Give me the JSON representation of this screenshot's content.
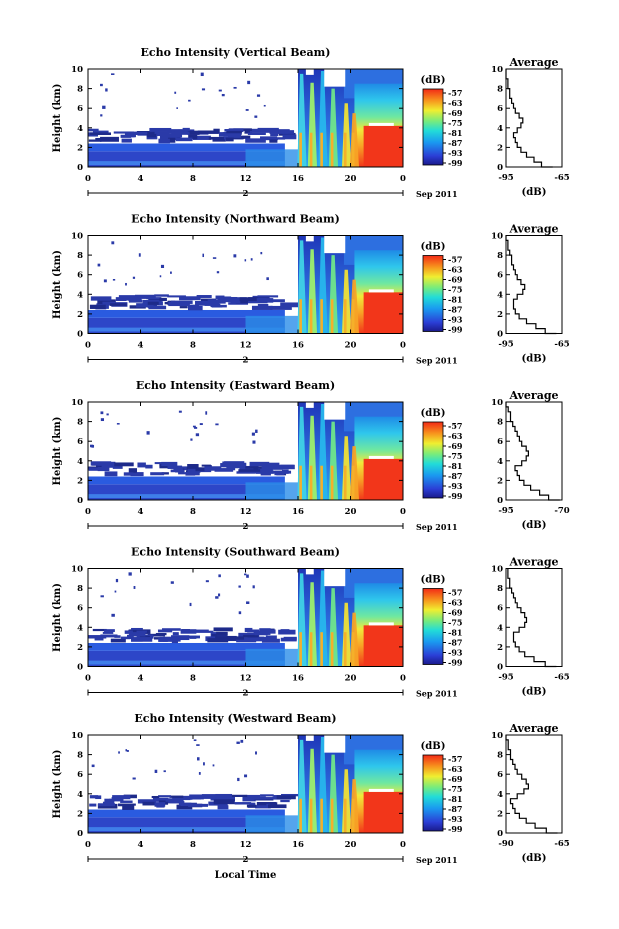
{
  "chart_data": [
    {
      "type": "heatmap",
      "title": "Echo Intensity (Vertical Beam)",
      "ylabel": "Height (km)",
      "xlim": [
        0,
        24
      ],
      "ylim": [
        0,
        10
      ],
      "x_ticks": [
        "0",
        "4",
        "8",
        "12",
        "16",
        "20",
        "0"
      ],
      "y_ticks": [
        "0",
        "2",
        "4",
        "6",
        "8",
        "10"
      ],
      "date_marker": "2",
      "date_suffix": "Sep 2011",
      "colorbar": {
        "label": "(dB)",
        "ticks": [
          "-57",
          "-63",
          "-69",
          "-75",
          "-81",
          "-87",
          "-93",
          "-99"
        ]
      },
      "profile": {
        "title": "Average",
        "xlabel": "(dB)",
        "xlim": [
          -95,
          -65
        ],
        "x_ticks": [
          "-95",
          "-65"
        ],
        "y_ticks": [
          "0",
          "2",
          "4",
          "6",
          "8",
          "10"
        ],
        "points": [
          [
            -70,
            0
          ],
          [
            -76,
            0.5
          ],
          [
            -80,
            1
          ],
          [
            -84,
            1.5
          ],
          [
            -87,
            2
          ],
          [
            -89,
            2.5
          ],
          [
            -90,
            3
          ],
          [
            -91,
            3.5
          ],
          [
            -89,
            4
          ],
          [
            -87,
            4.5
          ],
          [
            -86,
            5
          ],
          [
            -88,
            5.5
          ],
          [
            -90,
            6
          ],
          [
            -91,
            6.5
          ],
          [
            -92,
            7
          ],
          [
            -93,
            7.5
          ],
          [
            -93,
            8
          ],
          [
            -94,
            8.5
          ],
          [
            -94,
            9
          ],
          [
            -95,
            9.5
          ],
          [
            -95,
            10
          ]
        ]
      }
    },
    {
      "type": "heatmap",
      "title": "Echo Intensity (Northward Beam)",
      "ylabel": "Height (km)",
      "xlim": [
        0,
        24
      ],
      "ylim": [
        0,
        10
      ],
      "x_ticks": [
        "0",
        "4",
        "8",
        "12",
        "16",
        "20",
        "0"
      ],
      "y_ticks": [
        "0",
        "2",
        "4",
        "6",
        "8",
        "10"
      ],
      "date_marker": "2",
      "date_suffix": "Sep 2011",
      "colorbar": {
        "label": "(dB)",
        "ticks": [
          "-57",
          "-63",
          "-69",
          "-75",
          "-81",
          "-87",
          "-93",
          "-99"
        ]
      },
      "profile": {
        "title": "Average",
        "xlabel": "(dB)",
        "xlim": [
          -95,
          -65
        ],
        "x_ticks": [
          "-95",
          "-65"
        ],
        "y_ticks": [
          "0",
          "2",
          "4",
          "6",
          "8",
          "10"
        ],
        "points": [
          [
            -68,
            0
          ],
          [
            -74,
            0.5
          ],
          [
            -79,
            1
          ],
          [
            -84,
            1.5
          ],
          [
            -88,
            2
          ],
          [
            -90,
            2.5
          ],
          [
            -91,
            3
          ],
          [
            -91,
            3.5
          ],
          [
            -89,
            4
          ],
          [
            -86,
            4.5
          ],
          [
            -85,
            5
          ],
          [
            -87,
            5.5
          ],
          [
            -89,
            6
          ],
          [
            -90,
            6.5
          ],
          [
            -91,
            7
          ],
          [
            -92,
            7.5
          ],
          [
            -92,
            8
          ],
          [
            -93,
            8.5
          ],
          [
            -94,
            9
          ],
          [
            -94,
            9.5
          ],
          [
            -95,
            10
          ]
        ]
      }
    },
    {
      "type": "heatmap",
      "title": "Echo Intensity (Eastward Beam)",
      "ylabel": "Height (km)",
      "xlim": [
        0,
        24
      ],
      "ylim": [
        0,
        10
      ],
      "x_ticks": [
        "0",
        "4",
        "8",
        "12",
        "16",
        "20",
        "0"
      ],
      "y_ticks": [
        "0",
        "2",
        "4",
        "6",
        "8",
        "10"
      ],
      "date_marker": "2",
      "date_suffix": "Sep 2011",
      "colorbar": {
        "label": "(dB)",
        "ticks": [
          "-57",
          "-63",
          "-69",
          "-75",
          "-81",
          "-87",
          "-93",
          "-99"
        ]
      },
      "profile": {
        "title": "Average",
        "xlabel": "(dB)",
        "xlim": [
          -95,
          -70
        ],
        "x_ticks": [
          "-95",
          "-70"
        ],
        "y_ticks": [
          "0",
          "2",
          "4",
          "6",
          "8",
          "10"
        ],
        "points": [
          [
            -71,
            0
          ],
          [
            -76,
            0.5
          ],
          [
            -80,
            1
          ],
          [
            -84,
            1.5
          ],
          [
            -87,
            2
          ],
          [
            -89,
            2.5
          ],
          [
            -90,
            3
          ],
          [
            -91,
            3.5
          ],
          [
            -88,
            4
          ],
          [
            -86,
            4.5
          ],
          [
            -85,
            5
          ],
          [
            -86,
            5.5
          ],
          [
            -88,
            6
          ],
          [
            -89,
            6.5
          ],
          [
            -90,
            7
          ],
          [
            -91,
            7.5
          ],
          [
            -92,
            8
          ],
          [
            -93,
            8.5
          ],
          [
            -93,
            9
          ],
          [
            -94,
            9.5
          ],
          [
            -95,
            10
          ]
        ]
      }
    },
    {
      "type": "heatmap",
      "title": "Echo Intensity (Southward Beam)",
      "ylabel": "Height (km)",
      "xlim": [
        0,
        24
      ],
      "ylim": [
        0,
        10
      ],
      "x_ticks": [
        "0",
        "4",
        "8",
        "12",
        "16",
        "20",
        "0"
      ],
      "y_ticks": [
        "0",
        "2",
        "4",
        "6",
        "8",
        "10"
      ],
      "date_marker": "2",
      "date_suffix": "Sep 2011",
      "colorbar": {
        "label": "(dB)",
        "ticks": [
          "-57",
          "-63",
          "-69",
          "-75",
          "-81",
          "-87",
          "-93",
          "-99"
        ]
      },
      "profile": {
        "title": "Average",
        "xlabel": "(dB)",
        "xlim": [
          -95,
          -65
        ],
        "x_ticks": [
          "-95",
          "-65"
        ],
        "y_ticks": [
          "0",
          "2",
          "4",
          "6",
          "8",
          "10"
        ],
        "points": [
          [
            -68,
            0
          ],
          [
            -74,
            0.5
          ],
          [
            -80,
            1
          ],
          [
            -85,
            1.5
          ],
          [
            -88,
            2
          ],
          [
            -90,
            2.5
          ],
          [
            -91,
            3
          ],
          [
            -91,
            3.5
          ],
          [
            -88,
            4
          ],
          [
            -85,
            4.5
          ],
          [
            -84,
            5
          ],
          [
            -85,
            5.5
          ],
          [
            -87,
            6
          ],
          [
            -89,
            6.5
          ],
          [
            -90,
            7
          ],
          [
            -91,
            7.5
          ],
          [
            -92,
            8
          ],
          [
            -93,
            8.5
          ],
          [
            -93,
            9
          ],
          [
            -94,
            9.5
          ],
          [
            -94,
            10
          ]
        ]
      }
    },
    {
      "type": "heatmap",
      "title": "Echo Intensity (Westward Beam)",
      "ylabel": "Height (km)",
      "xlabel": "Local Time",
      "xlim": [
        0,
        24
      ],
      "ylim": [
        0,
        10
      ],
      "x_ticks": [
        "0",
        "4",
        "8",
        "12",
        "16",
        "20",
        "0"
      ],
      "y_ticks": [
        "0",
        "2",
        "4",
        "6",
        "8",
        "10"
      ],
      "date_marker": "2",
      "date_suffix": "Sep 2011",
      "colorbar": {
        "label": "(dB)",
        "ticks": [
          "-57",
          "-63",
          "-69",
          "-75",
          "-81",
          "-87",
          "-93",
          "-99"
        ]
      },
      "profile": {
        "title": "Average",
        "xlabel": "(dB)",
        "xlim": [
          -90,
          -65
        ],
        "x_ticks": [
          "-90",
          "-65"
        ],
        "y_ticks": [
          "0",
          "2",
          "4",
          "6",
          "8",
          "10"
        ],
        "points": [
          [
            -67,
            0
          ],
          [
            -72,
            0.5
          ],
          [
            -77,
            1
          ],
          [
            -81,
            1.5
          ],
          [
            -84,
            2
          ],
          [
            -86,
            2.5
          ],
          [
            -87,
            3
          ],
          [
            -88,
            3.5
          ],
          [
            -85,
            4
          ],
          [
            -82,
            4.5
          ],
          [
            -80,
            5
          ],
          [
            -81,
            5.5
          ],
          [
            -83,
            6
          ],
          [
            -85,
            6.5
          ],
          [
            -86,
            7
          ],
          [
            -87,
            7.5
          ],
          [
            -88,
            8
          ],
          [
            -88,
            8.5
          ],
          [
            -89,
            9
          ],
          [
            -89,
            9.5
          ],
          [
            -90,
            10
          ]
        ]
      }
    }
  ]
}
